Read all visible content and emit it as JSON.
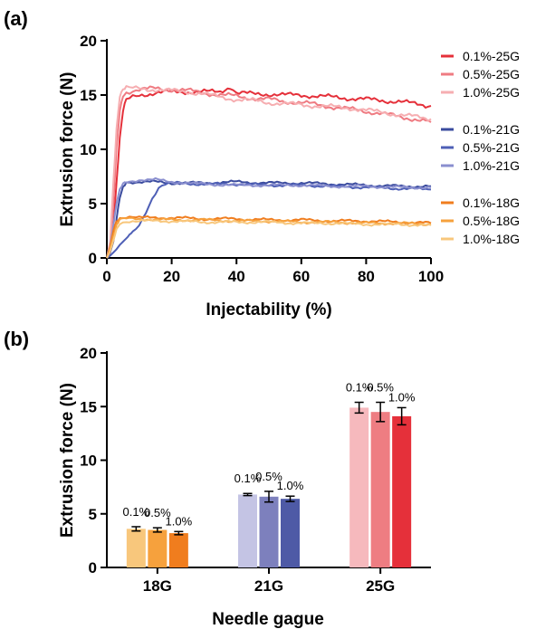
{
  "chart_data": [
    {
      "panel": "(a)",
      "type": "line",
      "xlabel": "Injectability (%)",
      "ylabel": "Extrusion force (N)",
      "xlim": [
        0,
        100
      ],
      "ylim": [
        0,
        20
      ],
      "xticks": [
        "0",
        "20",
        "40",
        "60",
        "80",
        "100"
      ],
      "yticks": [
        "0",
        "5",
        "10",
        "15",
        "20"
      ],
      "legend_position": "right",
      "series": [
        {
          "name": "0.1%-25G",
          "color": "#e5303a",
          "x": [
            0,
            1,
            2,
            3,
            4,
            5,
            6,
            8,
            10,
            15,
            20,
            25,
            30,
            35,
            38,
            40,
            45,
            50,
            55,
            60,
            65,
            70,
            75,
            80,
            85,
            90,
            95,
            100
          ],
          "y": [
            0,
            0.5,
            3,
            7,
            11,
            13.5,
            14.5,
            14.8,
            15,
            15.2,
            15.3,
            15.3,
            15.3,
            15.3,
            15.8,
            15.2,
            15.1,
            15.1,
            15,
            15,
            14.9,
            14.8,
            14.7,
            14.6,
            14.5,
            14.4,
            14.2,
            14.0
          ]
        },
        {
          "name": "0.5%-25G",
          "color": "#ef7b82",
          "x": [
            0,
            1,
            2,
            3,
            4,
            5,
            6,
            8,
            10,
            15,
            20,
            25,
            30,
            35,
            40,
            45,
            50,
            55,
            60,
            65,
            70,
            75,
            80,
            85,
            90,
            95,
            100
          ],
          "y": [
            0,
            1,
            5,
            10,
            13.5,
            15,
            15.3,
            15.4,
            15.5,
            15.6,
            15.5,
            15.4,
            15.2,
            15,
            14.9,
            14.7,
            14.6,
            14.4,
            14.3,
            14.1,
            13.9,
            13.7,
            13.5,
            13.3,
            13.0,
            12.8,
            12.5
          ]
        },
        {
          "name": "1.0%-25G",
          "color": "#f6aeb1",
          "x": [
            0,
            1,
            2,
            3,
            4,
            5,
            6,
            8,
            10,
            15,
            20,
            25,
            30,
            35,
            40,
            45,
            50,
            55,
            60,
            65,
            70,
            75,
            80,
            85,
            90,
            95,
            100
          ],
          "y": [
            0,
            1.5,
            7,
            12,
            15,
            15.5,
            15.6,
            15.6,
            15.6,
            15.5,
            15.4,
            15.3,
            15.1,
            14.8,
            14.6,
            14.5,
            14.3,
            14.2,
            14.1,
            14,
            13.9,
            13.8,
            13.6,
            13.4,
            13.2,
            13,
            12.8
          ]
        },
        {
          "name": "0.1%-21G",
          "color": "#3a4b9e",
          "x": [
            0,
            1,
            2,
            3,
            4,
            5,
            6,
            8,
            10,
            15,
            20,
            30,
            40,
            50,
            60,
            70,
            80,
            90,
            100
          ],
          "y": [
            0,
            0.5,
            1.5,
            3.5,
            5.5,
            6.5,
            7,
            7,
            7,
            7,
            6.9,
            6.9,
            7,
            6.9,
            6.9,
            6.8,
            6.7,
            6.6,
            6.6
          ]
        },
        {
          "name": "0.5%-21G",
          "color": "#4e5fb6",
          "x": [
            0,
            1,
            2,
            3,
            4,
            5,
            6,
            7,
            8,
            10,
            12,
            14,
            16,
            18,
            20,
            30,
            40,
            50,
            60,
            70,
            80,
            90,
            100
          ],
          "y": [
            0,
            0.2,
            0.5,
            0.8,
            1.2,
            1.5,
            1.8,
            2.1,
            2.3,
            3,
            4.2,
            5.5,
            6.5,
            6.8,
            6.9,
            6.8,
            6.8,
            6.7,
            6.7,
            6.6,
            6.5,
            6.4,
            6.3
          ]
        },
        {
          "name": "1.0%-21G",
          "color": "#8a8fcf",
          "x": [
            0,
            1,
            2,
            3,
            4,
            5,
            6,
            8,
            10,
            15,
            20,
            30,
            40,
            50,
            60,
            70,
            80,
            90,
            100
          ],
          "y": [
            0,
            1,
            3,
            5,
            6.2,
            6.8,
            7,
            7.1,
            7.2,
            7.2,
            7,
            6.8,
            6.7,
            6.7,
            6.7,
            6.6,
            6.6,
            6.5,
            6.5
          ]
        },
        {
          "name": "0.1%-18G",
          "color": "#f07d1e",
          "x": [
            0,
            1,
            2,
            3,
            4,
            6,
            8,
            10,
            20,
            30,
            40,
            50,
            60,
            70,
            80,
            90,
            100
          ],
          "y": [
            0,
            1,
            2.5,
            3.4,
            3.7,
            3.8,
            3.8,
            3.7,
            3.7,
            3.6,
            3.6,
            3.5,
            3.5,
            3.4,
            3.4,
            3.3,
            3.2
          ]
        },
        {
          "name": "0.5%-18G",
          "color": "#f6a13d",
          "x": [
            0,
            1,
            2,
            3,
            4,
            6,
            8,
            10,
            20,
            30,
            40,
            50,
            60,
            70,
            80,
            90,
            100
          ],
          "y": [
            0,
            0.8,
            2,
            3,
            3.5,
            3.6,
            3.6,
            3.6,
            3.5,
            3.5,
            3.4,
            3.4,
            3.3,
            3.3,
            3.2,
            3.2,
            3.1
          ]
        },
        {
          "name": "1.0%-18G",
          "color": "#f8c77c",
          "x": [
            0,
            1,
            2,
            3,
            4,
            6,
            8,
            10,
            20,
            30,
            40,
            50,
            60,
            70,
            80,
            90,
            100
          ],
          "y": [
            0,
            0.6,
            1.6,
            2.6,
            3.2,
            3.4,
            3.4,
            3.4,
            3.4,
            3.3,
            3.3,
            3.3,
            3.2,
            3.2,
            3.1,
            3.1,
            3.0
          ]
        }
      ]
    },
    {
      "panel": "(b)",
      "type": "bar",
      "xlabel": "Needle gague",
      "ylabel": "Extrusion force (N)",
      "ylim": [
        0,
        20
      ],
      "yticks": [
        "0",
        "5",
        "10",
        "15",
        "20"
      ],
      "categories": [
        "18G",
        "21G",
        "25G"
      ],
      "groups": [
        {
          "category": "18G",
          "bars": [
            {
              "label": "0.1%",
              "value": 3.6,
              "error": 0.2,
              "color": "#f8c77c"
            },
            {
              "label": "0.5%",
              "value": 3.5,
              "error": 0.2,
              "color": "#f6a13d"
            },
            {
              "label": "1.0%",
              "value": 3.2,
              "error": 0.15,
              "color": "#f07d1e"
            }
          ]
        },
        {
          "category": "21G",
          "bars": [
            {
              "label": "0.1%",
              "value": 6.8,
              "error": 0.1,
              "color": "#c4c4e4"
            },
            {
              "label": "0.5%",
              "value": 6.6,
              "error": 0.5,
              "color": "#7d80bd"
            },
            {
              "label": "1.0%",
              "value": 6.4,
              "error": 0.25,
              "color": "#4e5aa6"
            }
          ]
        },
        {
          "category": "25G",
          "bars": [
            {
              "label": "0.1%",
              "value": 14.9,
              "error": 0.5,
              "color": "#f6b9bd"
            },
            {
              "label": "0.5%",
              "value": 14.5,
              "error": 0.9,
              "color": "#ee7d82"
            },
            {
              "label": "1.0%",
              "value": 14.1,
              "error": 0.8,
              "color": "#e5303a"
            }
          ]
        }
      ]
    }
  ]
}
